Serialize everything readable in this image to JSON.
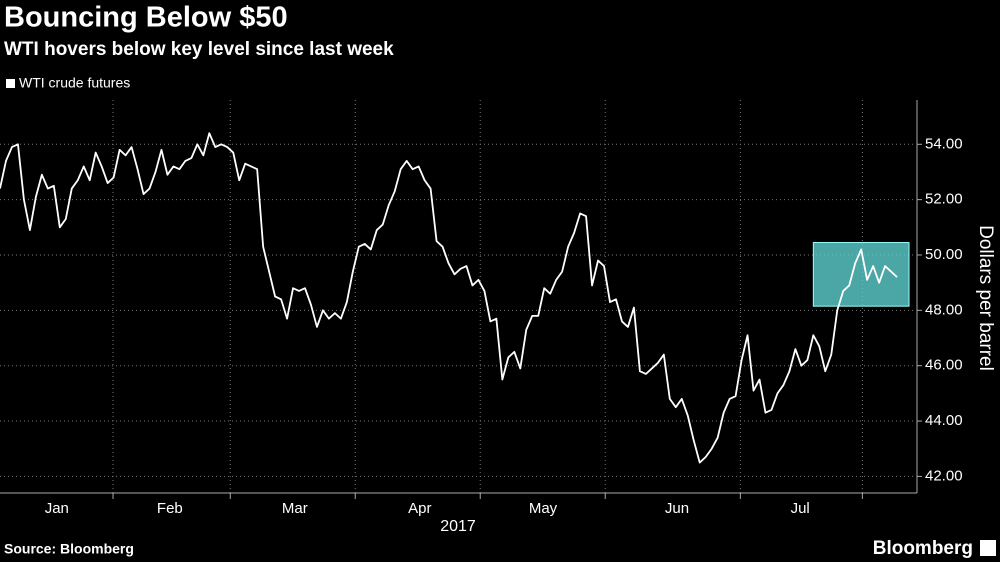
{
  "chart_data": {
    "type": "line",
    "title": "Bouncing Below $50",
    "subtitle": "WTI hovers below key level since last week",
    "legend_label": "WTI crude futures",
    "y_axis_label": "Dollars per barrel",
    "x_axis_label": "2017",
    "source": "Source: Bloomberg",
    "brand": "Bloomberg",
    "color": "#ffffff",
    "values": [
      52.4,
      53.4,
      53.9,
      54.0,
      52.0,
      50.9,
      52.1,
      52.9,
      52.4,
      52.5,
      51.0,
      51.3,
      52.4,
      52.7,
      53.2,
      52.7,
      53.7,
      53.2,
      52.6,
      52.8,
      53.8,
      53.6,
      53.9,
      53.1,
      52.2,
      52.4,
      53.0,
      53.8,
      52.9,
      53.2,
      53.1,
      53.4,
      53.5,
      54.0,
      53.6,
      54.4,
      53.9,
      54.0,
      53.9,
      53.7,
      52.7,
      53.3,
      53.2,
      53.1,
      50.3,
      49.4,
      48.5,
      48.4,
      47.7,
      48.8,
      48.7,
      48.8,
      48.2,
      47.4,
      48.0,
      47.7,
      47.9,
      47.7,
      48.3,
      49.4,
      50.3,
      50.4,
      50.2,
      50.9,
      51.1,
      51.8,
      52.3,
      53.1,
      53.4,
      53.1,
      53.2,
      52.7,
      52.4,
      50.5,
      50.3,
      49.7,
      49.3,
      49.5,
      49.6,
      48.9,
      49.1,
      48.7,
      47.6,
      47.7,
      45.5,
      46.3,
      46.5,
      45.9,
      47.3,
      47.8,
      47.8,
      48.8,
      48.6,
      49.1,
      49.4,
      50.3,
      50.8,
      51.5,
      51.4,
      48.9,
      49.8,
      49.6,
      48.3,
      48.4,
      47.6,
      47.4,
      48.1,
      45.8,
      45.7,
      45.9,
      46.1,
      46.4,
      44.8,
      44.5,
      44.8,
      44.2,
      43.3,
      42.5,
      42.7,
      43.0,
      43.4,
      44.3,
      44.8,
      44.9,
      46.2,
      47.1,
      45.1,
      45.5,
      44.3,
      44.4,
      45.0,
      45.3,
      45.8,
      46.6,
      46.0,
      46.2,
      47.1,
      46.7,
      45.8,
      46.4,
      48.0,
      48.7,
      48.9,
      49.7,
      50.2,
      49.1,
      49.6,
      49.0,
      49.6,
      49.4,
      49.2
    ],
    "xlim": [
      0,
      153
    ],
    "xticks": [
      {
        "value": 9.5,
        "label": "Jan"
      },
      {
        "value": 28.4,
        "label": "Feb"
      },
      {
        "value": 49.3,
        "label": "Mar"
      },
      {
        "value": 70.2,
        "label": "Apr"
      },
      {
        "value": 90.8,
        "label": "May"
      },
      {
        "value": 113.2,
        "label": "Jun"
      },
      {
        "value": 133.8,
        "label": "Jul"
      }
    ],
    "x_grid": [
      18.9,
      38.5,
      59.4,
      80.3,
      101.2,
      123.8,
      144.2
    ],
    "ylim": [
      41.4,
      55.6
    ],
    "yticks": [
      {
        "value": 42,
        "label": "42.00"
      },
      {
        "value": 44,
        "label": "44.00"
      },
      {
        "value": 46,
        "label": "46.00"
      },
      {
        "value": 48,
        "label": "48.00"
      },
      {
        "value": 50,
        "label": "50.00"
      },
      {
        "value": 52,
        "label": "52.00"
      },
      {
        "value": 54,
        "label": "54.00"
      }
    ],
    "grid": true,
    "highlight": {
      "x": [
        136,
        152
      ],
      "y": [
        48.15,
        50.45
      ],
      "color": "#5ecfd0"
    }
  }
}
